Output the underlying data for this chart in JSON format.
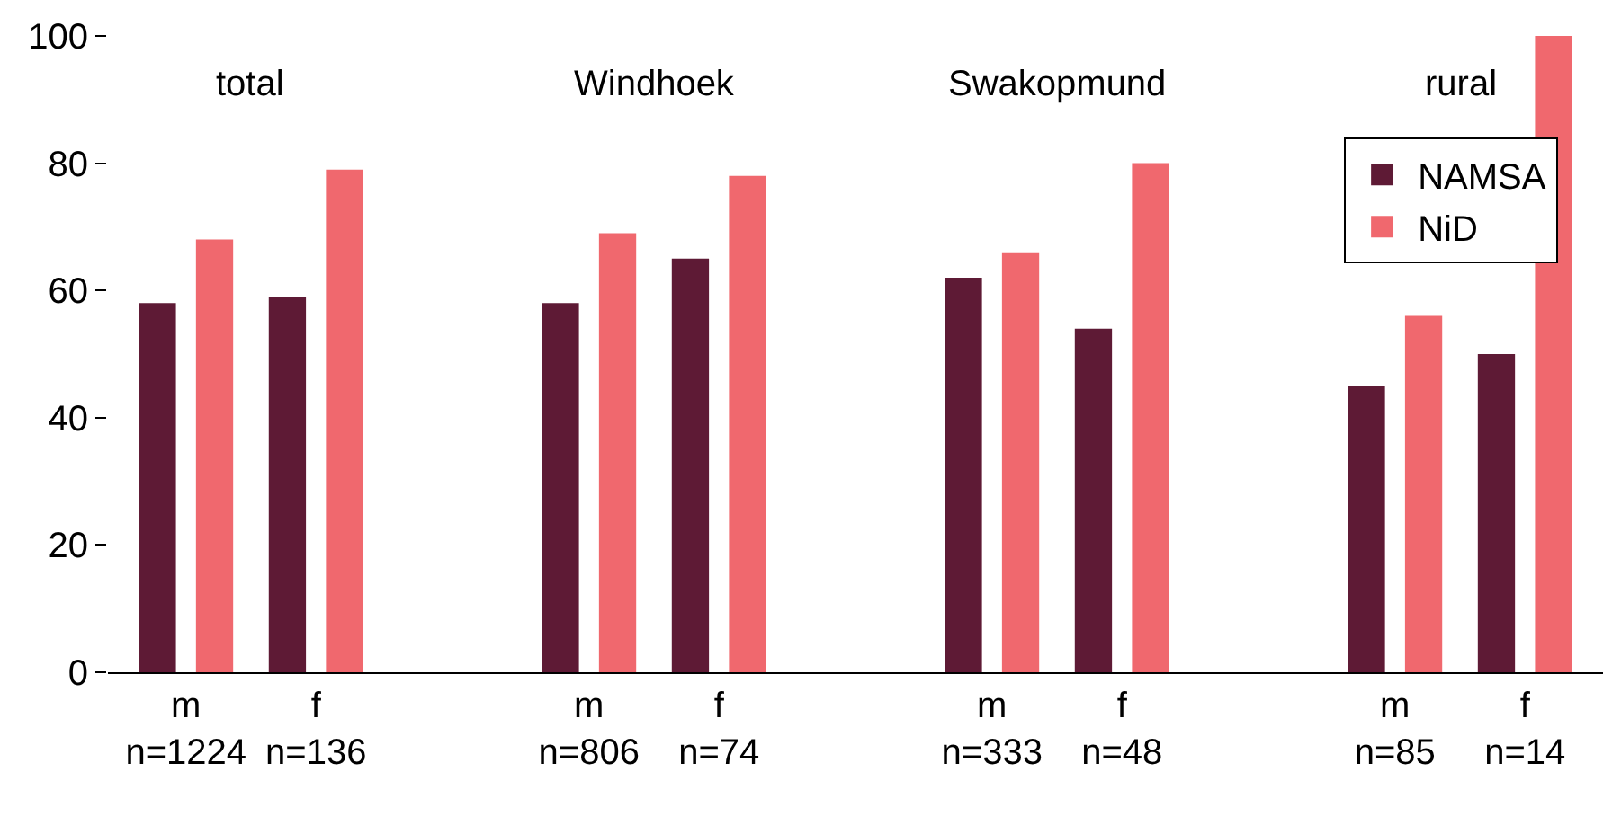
{
  "chart_data": {
    "type": "bar",
    "categories": [
      "m\nn=1224",
      "f\nn=136",
      "m\nn=806",
      "f\nn=74",
      "m\nn=333",
      "f\nn=48",
      "m\nn=85",
      "f\nn=14"
    ],
    "series": [
      {
        "name": "NAMSA",
        "color": "#5e1a35",
        "values": [
          58,
          59,
          58,
          65,
          62,
          54,
          45,
          50
        ]
      },
      {
        "name": "NiD",
        "color": "#f0686e",
        "values": [
          68,
          79,
          69,
          78,
          66,
          80,
          56,
          100
        ]
      }
    ],
    "annotations": [
      "total",
      "Windhoek",
      "Swakopmund",
      "rural"
    ],
    "ylim": [
      0,
      100
    ],
    "yticks": [
      0,
      20,
      40,
      60,
      80,
      100
    ],
    "legend": "top right"
  }
}
